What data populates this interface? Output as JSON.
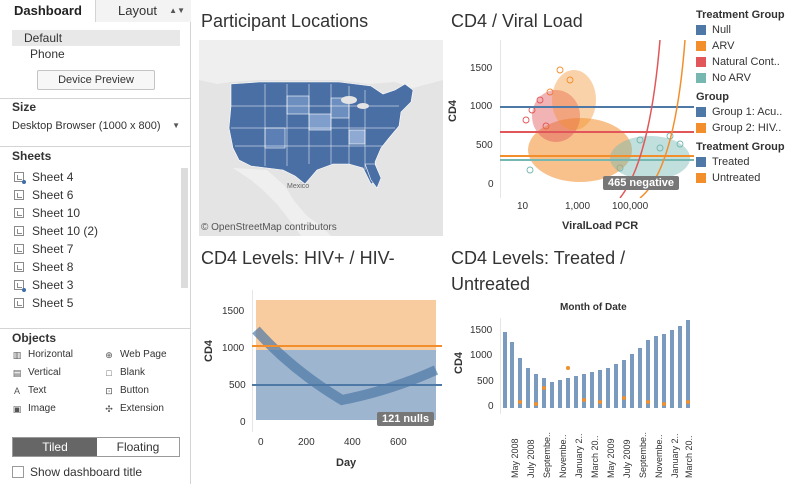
{
  "tabs": {
    "dashboard": "Dashboard",
    "layout": "Layout"
  },
  "device": {
    "default": "Default",
    "phone": "Phone",
    "preview_button": "Device Preview"
  },
  "size": {
    "title": "Size",
    "value": "Desktop Browser (1000 x 800)"
  },
  "sheets": {
    "title": "Sheets",
    "items": [
      {
        "label": "Sheet 4",
        "icon": "sheet-icon-filtered"
      },
      {
        "label": "Sheet 6",
        "icon": "sheet-icon"
      },
      {
        "label": "Sheet 10",
        "icon": "sheet-icon"
      },
      {
        "label": "Sheet 10 (2)",
        "icon": "sheet-icon"
      },
      {
        "label": "Sheet 7",
        "icon": "sheet-icon"
      },
      {
        "label": "Sheet 8",
        "icon": "sheet-icon"
      },
      {
        "label": "Sheet 3",
        "icon": "sheet-icon-filtered"
      },
      {
        "label": "Sheet 5",
        "icon": "sheet-icon"
      }
    ]
  },
  "objects": {
    "title": "Objects",
    "items": [
      {
        "label": "Horizontal",
        "icon": "horizontal-icon"
      },
      {
        "label": "Web Page",
        "icon": "globe-icon"
      },
      {
        "label": "Vertical",
        "icon": "vertical-icon"
      },
      {
        "label": "Blank",
        "icon": "blank-icon"
      },
      {
        "label": "Text",
        "icon": "text-icon"
      },
      {
        "label": "Button",
        "icon": "button-icon"
      },
      {
        "label": "Image",
        "icon": "image-icon"
      },
      {
        "label": "Extension",
        "icon": "extension-icon"
      }
    ]
  },
  "mode": {
    "tiled": "Tiled",
    "floating": "Floating"
  },
  "show_title": "Show dashboard title",
  "dashboard": {
    "map": {
      "title": "Participant Locations",
      "credit": "© OpenStreetMap contributors",
      "country_label": "Mexico"
    },
    "cd4_viral": {
      "title": "CD4 / Viral Load",
      "ylabel": "CD4",
      "xlabel": "ViralLoad PCR",
      "y_ticks": [
        "1500",
        "1000",
        "500",
        "0"
      ],
      "x_ticks": [
        "10",
        "1,000",
        "100,000"
      ],
      "badge": "465 negative"
    },
    "cd4_hiv": {
      "title": "CD4 Levels: HIV+ / HIV-",
      "ylabel": "CD4",
      "xlabel": "Day",
      "y_ticks": [
        "1500",
        "1000",
        "500",
        "0"
      ],
      "x_ticks": [
        "0",
        "200",
        "400",
        "600"
      ],
      "badge": "121 nulls"
    },
    "cd4_treat": {
      "title_line1": "CD4 Levels: Treated /",
      "title_line2": "Untreated",
      "header": "Month of Date",
      "ylabel": "CD4",
      "y_ticks": [
        "1500",
        "1000",
        "500",
        "0"
      ],
      "x_ticks": [
        "May 2008",
        "July 2008",
        "Septembe..",
        "Novembe..",
        "January 2..",
        "March 20..",
        "May 2009",
        "July 2009",
        "Septembe..",
        "Novembe..",
        "January 2..",
        "March 20.."
      ]
    }
  },
  "legend": {
    "groups": [
      {
        "title": "Treatment Group",
        "items": [
          {
            "label": "Null",
            "color": "#4e79a7"
          },
          {
            "label": "ARV",
            "color": "#f28e2b"
          },
          {
            "label": "Natural Cont..",
            "color": "#e15759"
          },
          {
            "label": "No ARV",
            "color": "#76b7b2"
          }
        ]
      },
      {
        "title": "Group",
        "items": [
          {
            "label": "Group 1: Acu..",
            "color": "#4e79a7"
          },
          {
            "label": "Group 2: HIV..",
            "color": "#f28e2b"
          }
        ]
      },
      {
        "title": "Treatment Group",
        "items": [
          {
            "label": "Treated",
            "color": "#4e79a7"
          },
          {
            "label": "Untreated",
            "color": "#f28e2b"
          }
        ]
      }
    ]
  },
  "colors": {
    "blue": "#4e79a7",
    "orange": "#f28e2b",
    "red": "#e15759",
    "teal": "#76b7b2",
    "state_fill": "#4a6fa5"
  }
}
